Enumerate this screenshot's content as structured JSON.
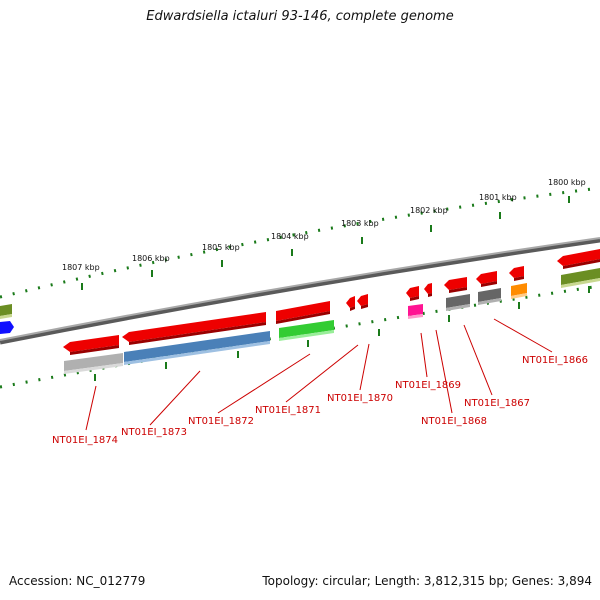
{
  "title": "Edwardsiella ictaluri 93-146, complete genome",
  "accession": "Accession: NC_012779",
  "topology": "Topology: circular; Length: 3,812,315 bp; Genes: 3,894",
  "kbp_labels": [
    "1807 kbp",
    "1806 kbp",
    "1805 kbp",
    "1804 kbp",
    "1803 kbp",
    "1802 kbp",
    "1801 kbp",
    "1800 kbp"
  ],
  "gene_labels": [
    "NT01EI_1874",
    "NT01EI_1873",
    "NT01EI_1872",
    "NT01EI_1871",
    "NT01EI_1870",
    "NT01EI_1869",
    "NT01EI_1868",
    "NT01EI_1867",
    "NT01EI_1866"
  ],
  "colors": {
    "backbone": "#7f7f7f",
    "tick": "#1a7a1a",
    "gene_red": "#ee0000",
    "cog_grey": "#b0b0b0",
    "cog_blue": "#4a80b8",
    "cog_green": "#33cc33",
    "cog_magenta": "#ff1493",
    "cog_darkgrey": "#666666",
    "cog_orange": "#ff8c00",
    "cog_olive": "#6b8e23",
    "cog_deepblue": "#1010ff",
    "label_red": "#cc0000"
  }
}
